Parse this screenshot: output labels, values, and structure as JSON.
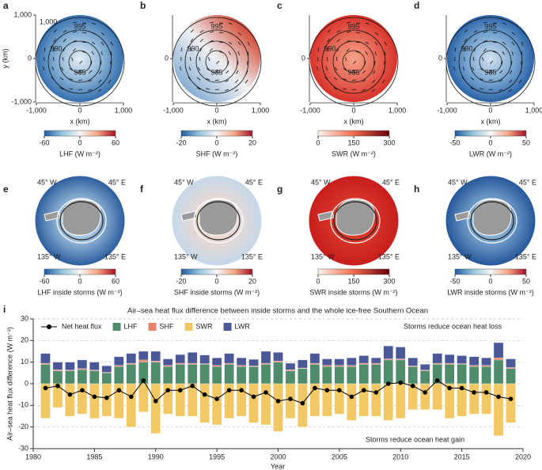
{
  "maps": [
    {
      "label": "a",
      "xticks": [
        {
          "value": -1000,
          "label": "-1,000"
        },
        0,
        {
          "value": 1000,
          "label": "1,000"
        }
      ],
      "yticks": [
        {
          "value": -1000,
          "label": "-1,000"
        },
        0,
        {
          "value": 1000,
          "label": "1,000"
        }
      ],
      "xlabel": "x (km)",
      "ylabel": "y (km)",
      "contour_labels": [
        "1,000",
        "995",
        "990",
        "985"
      ],
      "colorbar_label": "LHF (W m⁻²)",
      "clim": [
        -60,
        60
      ],
      "cticks": [
        -60,
        0,
        60
      ],
      "cmap": "diverging"
    },
    {
      "label": "b",
      "xticks": [
        {
          "value": -1000,
          "label": "-1,000"
        },
        0,
        {
          "value": 1000,
          "label": "1,000"
        }
      ],
      "yticks": [
        0
      ],
      "xlabel": "x (km)",
      "contour_labels": [
        "995",
        "990",
        "985"
      ],
      "colorbar_label": "SHF (W m⁻²)",
      "clim": [
        -20,
        20
      ],
      "cticks": [
        -20,
        0,
        20
      ],
      "cmap": "diverging"
    },
    {
      "label": "c",
      "xticks": [
        {
          "value": -1000,
          "label": "-1,000"
        },
        0,
        {
          "value": 1000,
          "label": "1,000"
        }
      ],
      "yticks": [
        0
      ],
      "xlabel": "x (km)",
      "contour_labels": [
        "995",
        "990",
        "985"
      ],
      "colorbar_label": "SWR (W m⁻²)",
      "clim": [
        0,
        300
      ],
      "cticks": [
        0,
        150,
        300
      ],
      "cmap": "sequential"
    },
    {
      "label": "d",
      "xticks": [
        {
          "value": -1000,
          "label": "-1,000"
        },
        0,
        {
          "value": 1000,
          "label": "1,000"
        }
      ],
      "yticks": [
        0
      ],
      "xlabel": "x (km)",
      "contour_labels": [
        "995",
        "990",
        "985"
      ],
      "colorbar_label": "LWR (W m⁻²)",
      "clim": [
        -50,
        50
      ],
      "cticks": [
        -50,
        0,
        50
      ],
      "cmap": "diverging"
    },
    {
      "label": "e",
      "lon_labels": [
        "45° W",
        "45° E",
        "135° W",
        "135° E"
      ],
      "colorbar_label": "LHF inside storms (W m⁻²)",
      "clim": [
        -60,
        60
      ],
      "cticks": [
        -60,
        0,
        60
      ],
      "cmap": "diverging"
    },
    {
      "label": "f",
      "lon_labels": [
        "45° W",
        "45° E",
        "135° W",
        "135° E"
      ],
      "colorbar_label": "SHF inside storms (W m⁻²)",
      "clim": [
        -20,
        20
      ],
      "cticks": [
        -20,
        0,
        20
      ],
      "cmap": "diverging"
    },
    {
      "label": "g",
      "lon_labels": [
        "45° W",
        "45° E",
        "135° W",
        "135° E"
      ],
      "colorbar_label": "SWR inside storms (W m⁻²)",
      "clim": [
        0,
        300
      ],
      "cticks": [
        0,
        150,
        300
      ],
      "cmap": "sequential"
    },
    {
      "label": "h",
      "lon_labels": [
        "45° W",
        "45° E",
        "135° W",
        "135° E"
      ],
      "colorbar_label": "LWR inside storms (W m⁻²)",
      "clim": [
        -50,
        50
      ],
      "cticks": [
        -50,
        0,
        50
      ],
      "cmap": "diverging"
    }
  ],
  "chart_data": {
    "type": "bar",
    "label": "i",
    "title": "Air–sea heat flux difference between inside storms and the whole ice-free Southern Ocean",
    "xlabel": "Year",
    "ylabel": "Air–sea heat flux difference (W m⁻²)",
    "annotations": [
      "Storms reduce ocean heat loss",
      "Storms reduce ocean heat gain"
    ],
    "x": [
      1981,
      1982,
      1983,
      1984,
      1985,
      1986,
      1987,
      1988,
      1989,
      1990,
      1991,
      1992,
      1993,
      1994,
      1995,
      1996,
      1997,
      1998,
      1999,
      2000,
      2001,
      2002,
      2003,
      2004,
      2005,
      2006,
      2007,
      2008,
      2009,
      2010,
      2011,
      2012,
      2013,
      2014,
      2015,
      2016,
      2017,
      2018,
      2019
    ],
    "series": [
      {
        "name": "Net heat flux",
        "type": "line",
        "color": "#000000",
        "values": [
          -2,
          -1,
          -5,
          -3,
          -6,
          -6.5,
          -3,
          -6,
          1.5,
          -8,
          -3,
          -3,
          -1,
          -5,
          -7,
          -3,
          -3,
          -6,
          -4,
          -8,
          -7,
          -9,
          -2,
          -3,
          -3,
          -6,
          -3,
          -4,
          0,
          0.5,
          -1,
          -4,
          1.5,
          -2,
          -2,
          -4,
          -4,
          -6,
          -7
        ]
      },
      {
        "name": "LHF",
        "type": "bar",
        "color": "#4e8c6c",
        "values": [
          9,
          6,
          6,
          6.5,
          6,
          5,
          8,
          9,
          10,
          10,
          8,
          9,
          9,
          9,
          8,
          9,
          8,
          8,
          9,
          10,
          6,
          7,
          9,
          8,
          8,
          8,
          9,
          9,
          11,
          11,
          8,
          6,
          9,
          9,
          9,
          8,
          8,
          11,
          7
        ]
      },
      {
        "name": "SHF",
        "type": "bar",
        "color": "#e8826a",
        "values": [
          0.5,
          0.5,
          0.3,
          0.5,
          0.3,
          0.3,
          0.5,
          0.5,
          1,
          0.5,
          0.5,
          0.5,
          0.5,
          0.3,
          0.5,
          0.5,
          0.5,
          0.3,
          0.5,
          0.5,
          0.5,
          0.3,
          0.5,
          0.5,
          0.5,
          0.5,
          0.5,
          0.5,
          0.5,
          0.5,
          0.3,
          0.3,
          0.5,
          0.5,
          0.3,
          0.5,
          0.5,
          1,
          0.5
        ]
      },
      {
        "name": "SWR",
        "type": "bar",
        "color": "#f2c865",
        "values": [
          -16,
          -11,
          -15,
          -14,
          -16,
          -15,
          -16,
          -20,
          -13,
          -23,
          -14,
          -15,
          -15,
          -18,
          -19,
          -16,
          -15,
          -18,
          -19,
          -22,
          -16,
          -20,
          -15,
          -15,
          -14,
          -17,
          -15,
          -15,
          -17,
          -16,
          -12,
          -12,
          -12,
          -16,
          -15,
          -14,
          -14,
          -24,
          -18
        ]
      },
      {
        "name": "LWR",
        "type": "bar",
        "color": "#4a5898",
        "values": [
          4.5,
          3.5,
          3.7,
          4,
          3.7,
          3,
          4,
          4.5,
          4,
          4.5,
          3,
          4,
          5,
          4,
          3.5,
          4.5,
          3.5,
          3,
          5.5,
          4,
          3,
          3.7,
          4.5,
          3,
          3,
          3.5,
          3.5,
          2.5,
          6,
          5.5,
          3.7,
          2.7,
          4.5,
          4,
          3.7,
          4,
          3.5,
          7,
          4
        ]
      }
    ],
    "xlim": [
      1980,
      2020
    ],
    "xticks": [
      1980,
      1985,
      1990,
      1995,
      2000,
      2005,
      2010,
      2015,
      2020
    ],
    "ylim": [
      -30,
      30
    ],
    "yticks": [
      -30,
      -20,
      -10,
      0,
      10,
      20,
      30
    ],
    "grid": true
  }
}
